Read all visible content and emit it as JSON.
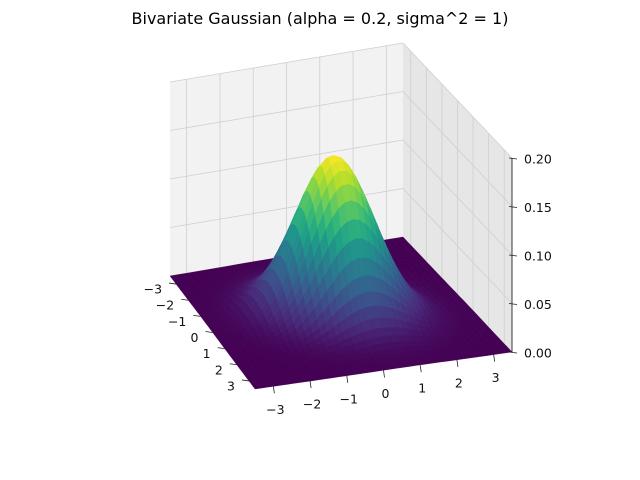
{
  "chart_data": {
    "type": "surface",
    "title": "Bivariate Gaussian (alpha = 0.2, sigma^2 = 1)",
    "function": "bivariate normal density, correlation alpha = 0.2, variance sigma^2 = 1",
    "alpha": 0.2,
    "sigma_sq": 1,
    "x_range": [
      -3.5,
      3.5
    ],
    "y_range": [
      -3.5,
      3.5
    ],
    "z_range": [
      0,
      0.2
    ],
    "x_ticks": [
      "−3",
      "−2",
      "−1",
      "0",
      "1",
      "2",
      "3"
    ],
    "y_ticks": [
      "−3",
      "−2",
      "−1",
      "0",
      "1",
      "2",
      "3"
    ],
    "z_ticks": [
      "0.00",
      "0.05",
      "0.10",
      "0.15",
      "0.20"
    ],
    "x_tick_values": [
      -3,
      -2,
      -1,
      0,
      1,
      2,
      3
    ],
    "y_tick_values": [
      -3,
      -2,
      -1,
      0,
      1,
      2,
      3
    ],
    "z_tick_values": [
      0,
      0.05,
      0.1,
      0.15,
      0.2
    ],
    "grid_samples": 40,
    "colormap": "viridis",
    "peak_value": 0.1624,
    "grid": true
  }
}
